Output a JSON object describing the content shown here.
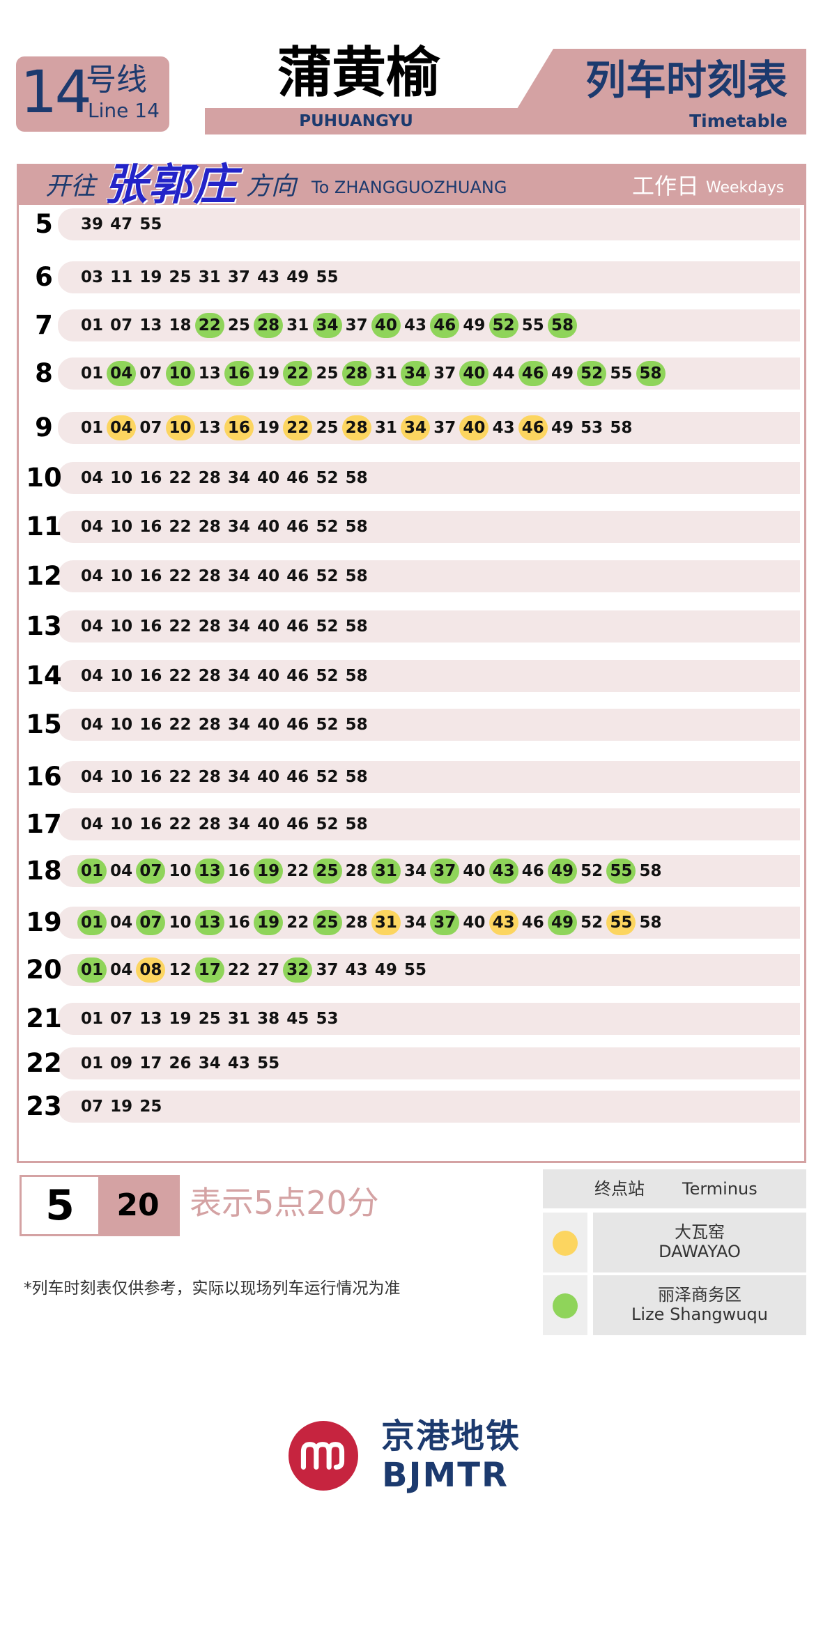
{
  "header": {
    "line_number": "14",
    "line_cn": "号线",
    "line_en": "Line 14",
    "station_cn": "蒲黄榆",
    "station_en": "PUHUANGYU",
    "title_cn": "列车时刻表",
    "title_en": "Timetable"
  },
  "direction": {
    "prefix_cn": "开往",
    "name_cn": "张郭庄",
    "suffix_cn": "方向",
    "en": "To ZHANGGUOZHUANG",
    "day_cn": "工作日",
    "day_en": "Weekdays"
  },
  "timetable": [
    {
      "hour": "5",
      "minutes": [
        [
          "39",
          ""
        ],
        [
          "47",
          ""
        ],
        [
          "55",
          ""
        ]
      ]
    },
    {
      "hour": "6",
      "minutes": [
        [
          "03",
          ""
        ],
        [
          "11",
          ""
        ],
        [
          "19",
          ""
        ],
        [
          "25",
          ""
        ],
        [
          "31",
          ""
        ],
        [
          "37",
          ""
        ],
        [
          "43",
          ""
        ],
        [
          "49",
          ""
        ],
        [
          "55",
          ""
        ]
      ]
    },
    {
      "hour": "7",
      "minutes": [
        [
          "01",
          ""
        ],
        [
          "07",
          ""
        ],
        [
          "13",
          ""
        ],
        [
          "18",
          ""
        ],
        [
          "22",
          "green"
        ],
        [
          "25",
          ""
        ],
        [
          "28",
          "green"
        ],
        [
          "31",
          ""
        ],
        [
          "34",
          "green"
        ],
        [
          "37",
          ""
        ],
        [
          "40",
          "green"
        ],
        [
          "43",
          ""
        ],
        [
          "46",
          "green"
        ],
        [
          "49",
          ""
        ],
        [
          "52",
          "green"
        ],
        [
          "55",
          ""
        ],
        [
          "58",
          "green"
        ]
      ]
    },
    {
      "hour": "8",
      "minutes": [
        [
          "01",
          ""
        ],
        [
          "04",
          "green"
        ],
        [
          "07",
          ""
        ],
        [
          "10",
          "green"
        ],
        [
          "13",
          ""
        ],
        [
          "16",
          "green"
        ],
        [
          "19",
          ""
        ],
        [
          "22",
          "green"
        ],
        [
          "25",
          ""
        ],
        [
          "28",
          "green"
        ],
        [
          "31",
          ""
        ],
        [
          "34",
          "green"
        ],
        [
          "37",
          ""
        ],
        [
          "40",
          "green"
        ],
        [
          "44",
          ""
        ],
        [
          "46",
          "green"
        ],
        [
          "49",
          ""
        ],
        [
          "52",
          "green"
        ],
        [
          "55",
          ""
        ],
        [
          "58",
          "green"
        ]
      ]
    },
    {
      "hour": "9",
      "minutes": [
        [
          "01",
          ""
        ],
        [
          "04",
          "yellow"
        ],
        [
          "07",
          ""
        ],
        [
          "10",
          "yellow"
        ],
        [
          "13",
          ""
        ],
        [
          "16",
          "yellow"
        ],
        [
          "19",
          ""
        ],
        [
          "22",
          "yellow"
        ],
        [
          "25",
          ""
        ],
        [
          "28",
          "yellow"
        ],
        [
          "31",
          ""
        ],
        [
          "34",
          "yellow"
        ],
        [
          "37",
          ""
        ],
        [
          "40",
          "yellow"
        ],
        [
          "43",
          ""
        ],
        [
          "46",
          "yellow"
        ],
        [
          "49",
          ""
        ],
        [
          "53",
          ""
        ],
        [
          "58",
          ""
        ]
      ]
    },
    {
      "hour": "10",
      "minutes": [
        [
          "04",
          ""
        ],
        [
          "10",
          ""
        ],
        [
          "16",
          ""
        ],
        [
          "22",
          ""
        ],
        [
          "28",
          ""
        ],
        [
          "34",
          ""
        ],
        [
          "40",
          ""
        ],
        [
          "46",
          ""
        ],
        [
          "52",
          ""
        ],
        [
          "58",
          ""
        ]
      ]
    },
    {
      "hour": "11",
      "minutes": [
        [
          "04",
          ""
        ],
        [
          "10",
          ""
        ],
        [
          "16",
          ""
        ],
        [
          "22",
          ""
        ],
        [
          "28",
          ""
        ],
        [
          "34",
          ""
        ],
        [
          "40",
          ""
        ],
        [
          "46",
          ""
        ],
        [
          "52",
          ""
        ],
        [
          "58",
          ""
        ]
      ]
    },
    {
      "hour": "12",
      "minutes": [
        [
          "04",
          ""
        ],
        [
          "10",
          ""
        ],
        [
          "16",
          ""
        ],
        [
          "22",
          ""
        ],
        [
          "28",
          ""
        ],
        [
          "34",
          ""
        ],
        [
          "40",
          ""
        ],
        [
          "46",
          ""
        ],
        [
          "52",
          ""
        ],
        [
          "58",
          ""
        ]
      ]
    },
    {
      "hour": "13",
      "minutes": [
        [
          "04",
          ""
        ],
        [
          "10",
          ""
        ],
        [
          "16",
          ""
        ],
        [
          "22",
          ""
        ],
        [
          "28",
          ""
        ],
        [
          "34",
          ""
        ],
        [
          "40",
          ""
        ],
        [
          "46",
          ""
        ],
        [
          "52",
          ""
        ],
        [
          "58",
          ""
        ]
      ]
    },
    {
      "hour": "14",
      "minutes": [
        [
          "04",
          ""
        ],
        [
          "10",
          ""
        ],
        [
          "16",
          ""
        ],
        [
          "22",
          ""
        ],
        [
          "28",
          ""
        ],
        [
          "34",
          ""
        ],
        [
          "40",
          ""
        ],
        [
          "46",
          ""
        ],
        [
          "52",
          ""
        ],
        [
          "58",
          ""
        ]
      ]
    },
    {
      "hour": "15",
      "minutes": [
        [
          "04",
          ""
        ],
        [
          "10",
          ""
        ],
        [
          "16",
          ""
        ],
        [
          "22",
          ""
        ],
        [
          "28",
          ""
        ],
        [
          "34",
          ""
        ],
        [
          "40",
          ""
        ],
        [
          "46",
          ""
        ],
        [
          "52",
          ""
        ],
        [
          "58",
          ""
        ]
      ]
    },
    {
      "hour": "16",
      "minutes": [
        [
          "04",
          ""
        ],
        [
          "10",
          ""
        ],
        [
          "16",
          ""
        ],
        [
          "22",
          ""
        ],
        [
          "28",
          ""
        ],
        [
          "34",
          ""
        ],
        [
          "40",
          ""
        ],
        [
          "46",
          ""
        ],
        [
          "52",
          ""
        ],
        [
          "58",
          ""
        ]
      ]
    },
    {
      "hour": "17",
      "minutes": [
        [
          "04",
          ""
        ],
        [
          "10",
          ""
        ],
        [
          "16",
          ""
        ],
        [
          "22",
          ""
        ],
        [
          "28",
          ""
        ],
        [
          "34",
          ""
        ],
        [
          "40",
          ""
        ],
        [
          "46",
          ""
        ],
        [
          "52",
          ""
        ],
        [
          "58",
          ""
        ]
      ]
    },
    {
      "hour": "18",
      "minutes": [
        [
          "01",
          "green"
        ],
        [
          "04",
          ""
        ],
        [
          "07",
          "green"
        ],
        [
          "10",
          ""
        ],
        [
          "13",
          "green"
        ],
        [
          "16",
          ""
        ],
        [
          "19",
          "green"
        ],
        [
          "22",
          ""
        ],
        [
          "25",
          "green"
        ],
        [
          "28",
          ""
        ],
        [
          "31",
          "green"
        ],
        [
          "34",
          ""
        ],
        [
          "37",
          "green"
        ],
        [
          "40",
          ""
        ],
        [
          "43",
          "green"
        ],
        [
          "46",
          ""
        ],
        [
          "49",
          "green"
        ],
        [
          "52",
          ""
        ],
        [
          "55",
          "green"
        ],
        [
          "58",
          ""
        ]
      ]
    },
    {
      "hour": "19",
      "minutes": [
        [
          "01",
          "green"
        ],
        [
          "04",
          ""
        ],
        [
          "07",
          "green"
        ],
        [
          "10",
          ""
        ],
        [
          "13",
          "green"
        ],
        [
          "16",
          ""
        ],
        [
          "19",
          "green"
        ],
        [
          "22",
          ""
        ],
        [
          "25",
          "green"
        ],
        [
          "28",
          ""
        ],
        [
          "31",
          "yellow"
        ],
        [
          "34",
          ""
        ],
        [
          "37",
          "green"
        ],
        [
          "40",
          ""
        ],
        [
          "43",
          "yellow"
        ],
        [
          "46",
          ""
        ],
        [
          "49",
          "green"
        ],
        [
          "52",
          ""
        ],
        [
          "55",
          "yellow"
        ],
        [
          "58",
          ""
        ]
      ]
    },
    {
      "hour": "20",
      "minutes": [
        [
          "01",
          "green"
        ],
        [
          "04",
          ""
        ],
        [
          "08",
          "yellow"
        ],
        [
          "12",
          ""
        ],
        [
          "17",
          "green"
        ],
        [
          "22",
          ""
        ],
        [
          "27",
          ""
        ],
        [
          "32",
          "green"
        ],
        [
          "37",
          ""
        ],
        [
          "43",
          ""
        ],
        [
          "49",
          ""
        ],
        [
          "55",
          ""
        ]
      ]
    },
    {
      "hour": "21",
      "minutes": [
        [
          "01",
          ""
        ],
        [
          "07",
          ""
        ],
        [
          "13",
          ""
        ],
        [
          "19",
          ""
        ],
        [
          "25",
          ""
        ],
        [
          "31",
          ""
        ],
        [
          "38",
          ""
        ],
        [
          "45",
          ""
        ],
        [
          "53",
          ""
        ]
      ]
    },
    {
      "hour": "22",
      "minutes": [
        [
          "01",
          ""
        ],
        [
          "09",
          ""
        ],
        [
          "17",
          ""
        ],
        [
          "26",
          ""
        ],
        [
          "34",
          ""
        ],
        [
          "43",
          ""
        ],
        [
          "55",
          ""
        ]
      ]
    },
    {
      "hour": "23",
      "minutes": [
        [
          "07",
          ""
        ],
        [
          "19",
          ""
        ],
        [
          "25",
          ""
        ]
      ]
    }
  ],
  "legend": {
    "example_hour": "5",
    "example_minute": "20",
    "example_text": "表示5点20分",
    "note": "*列车时刻表仅供参考，实际以现场列车运行情况为准",
    "terminus_cn": "终点站",
    "terminus_en": "Terminus",
    "termini": [
      {
        "color": "#fcd560",
        "name_cn": "大瓦窑",
        "name_en": "DAWAYAO"
      },
      {
        "color": "#8fd45a",
        "name_cn": "丽泽商务区",
        "name_en": "Lize Shangwuqu"
      }
    ]
  },
  "logo": {
    "cn": "京港地铁",
    "en": "BJMTR",
    "brand_color": "#c6243f"
  },
  "colors": {
    "accent_pink": "#d4a2a3",
    "navy": "#1c3a6e",
    "green_dot": "#8fd45a",
    "yellow_dot": "#fcd560"
  }
}
